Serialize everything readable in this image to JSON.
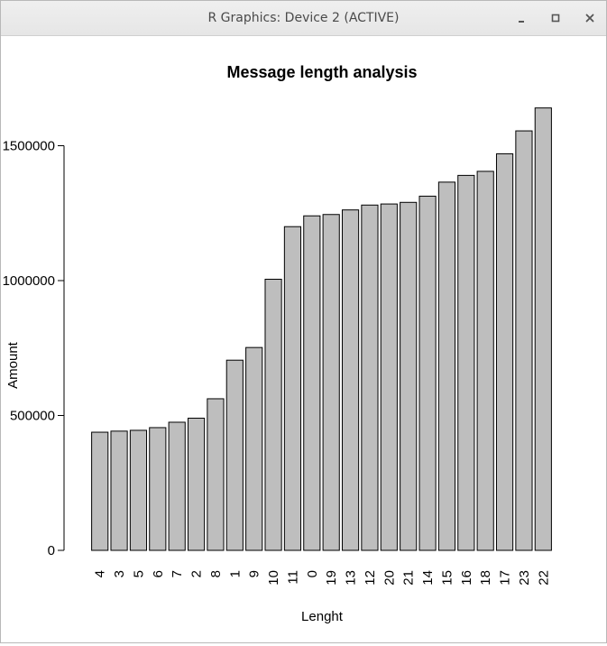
{
  "window": {
    "title": "R Graphics: Device 2 (ACTIVE)",
    "icons": [
      "minimize-icon",
      "maximize-icon",
      "close-icon"
    ]
  },
  "chart_data": {
    "type": "bar",
    "title": "Message length analysis",
    "xlabel": "Lenght",
    "ylabel": "Amount",
    "ylim": [
      0,
      1650000
    ],
    "yticks": [
      0,
      500000,
      1000000,
      1500000
    ],
    "ytick_labels": [
      "0",
      "500000",
      "1000000",
      "1500000"
    ],
    "categories": [
      "4",
      "3",
      "5",
      "6",
      "7",
      "2",
      "8",
      "1",
      "9",
      "10",
      "11",
      "0",
      "19",
      "13",
      "12",
      "20",
      "21",
      "14",
      "15",
      "16",
      "18",
      "17",
      "23",
      "22"
    ],
    "values": [
      438000,
      442000,
      445000,
      455000,
      475000,
      490000,
      562000,
      705000,
      752000,
      1005000,
      1200000,
      1240000,
      1245000,
      1262000,
      1280000,
      1284000,
      1290000,
      1313000,
      1365000,
      1390000,
      1405000,
      1470000,
      1555000,
      1640000
    ],
    "bar_fill": "#bebebe",
    "bar_stroke": "#000000",
    "grid": false,
    "legend": "none"
  }
}
